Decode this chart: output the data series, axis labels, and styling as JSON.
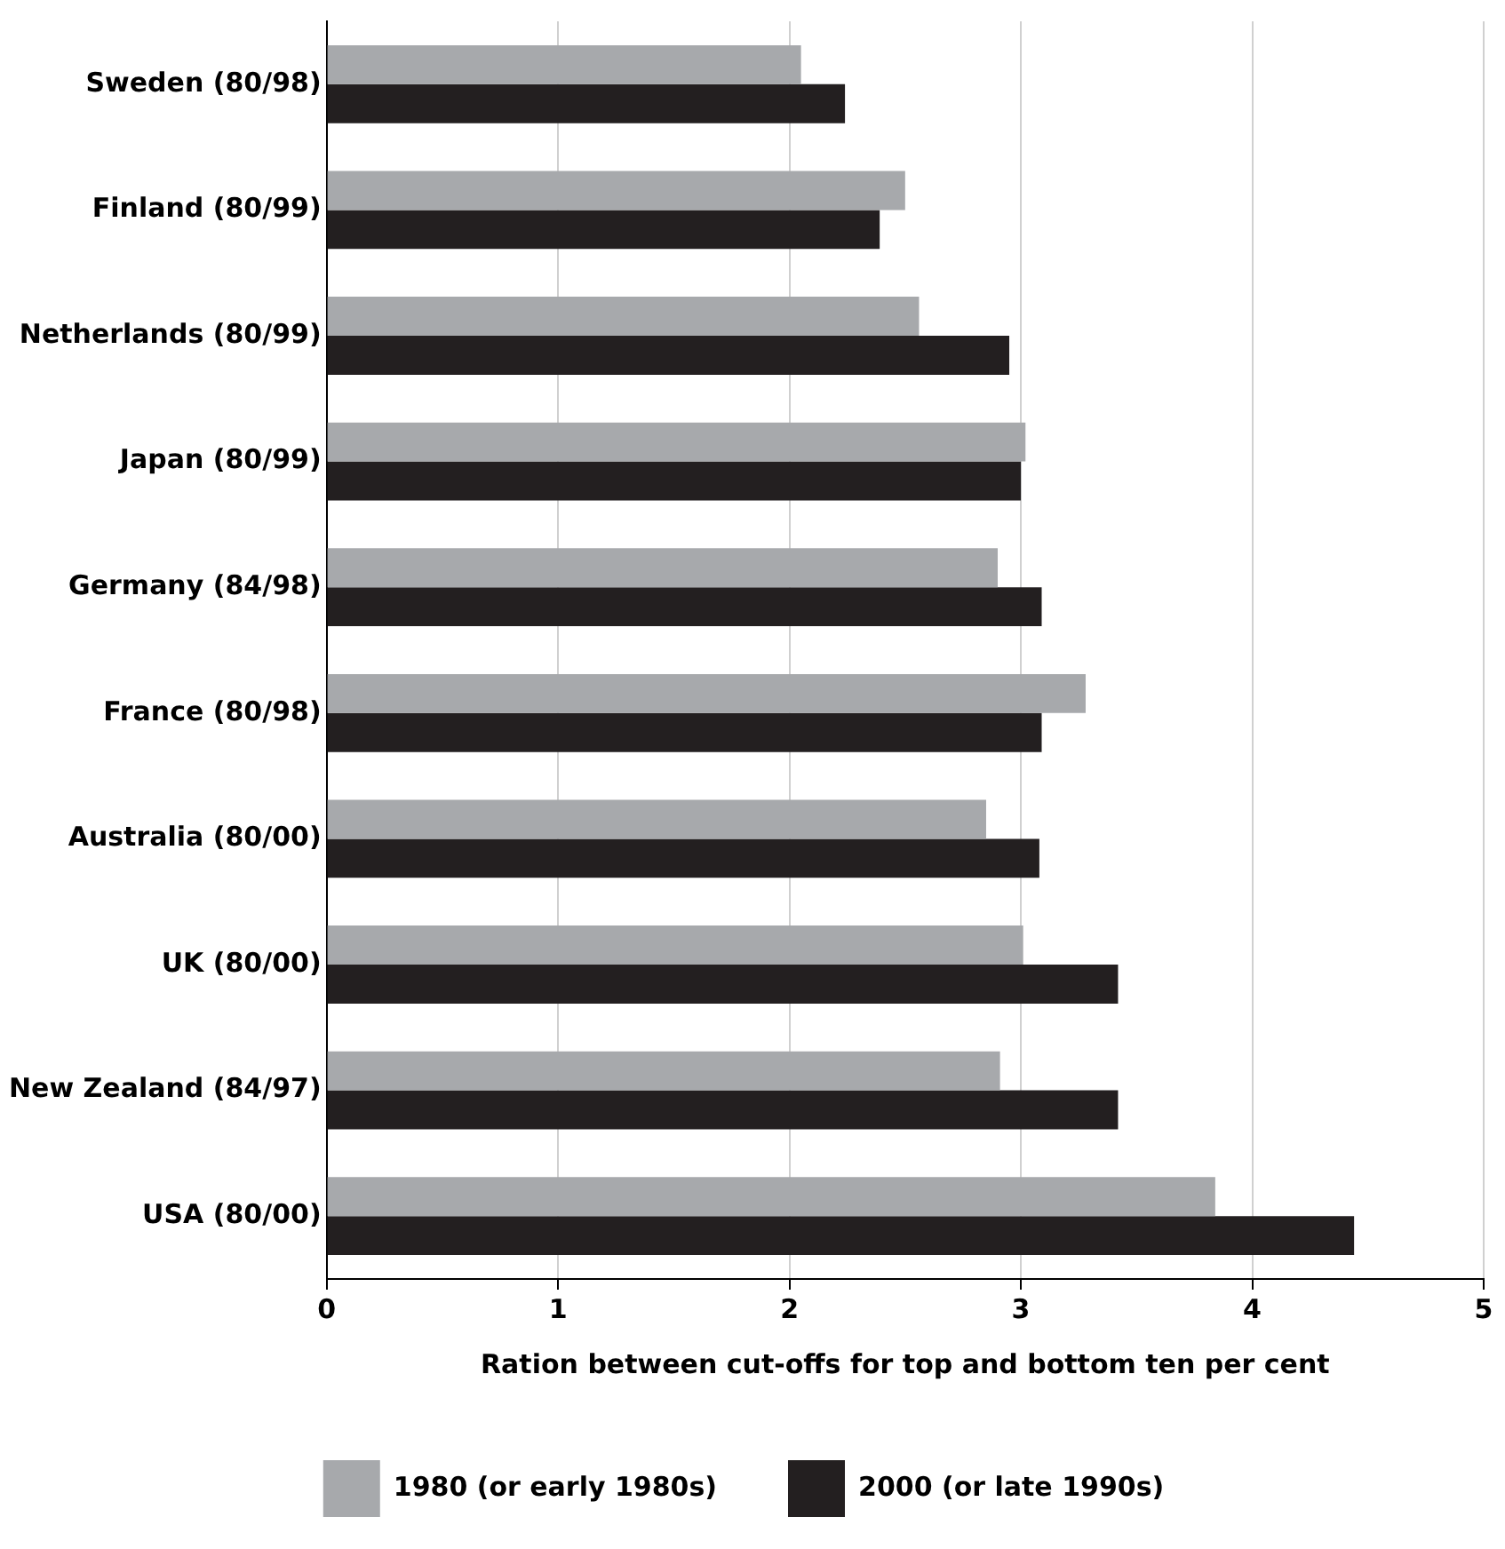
{
  "chart_data": {
    "type": "bar",
    "orientation": "horizontal",
    "xlabel": "Ration between cut-offs for top and bottom ten per cent",
    "categories": [
      "Sweden (80/98)",
      "Finland (80/99)",
      "Netherlands (80/99)",
      "Japan (80/99)",
      "Germany (84/98)",
      "France (80/98)",
      "Australia (80/00)",
      "UK (80/00)",
      "New Zealand (84/97)",
      "USA (80/00)"
    ],
    "series": [
      {
        "name": "1980 (or early 1980s)",
        "color": "#a7a9ac",
        "values": [
          2.05,
          2.5,
          2.56,
          3.02,
          2.9,
          3.28,
          2.85,
          3.01,
          2.91,
          3.84
        ]
      },
      {
        "name": "2000 (or late 1990s)",
        "color": "#231f20",
        "values": [
          2.24,
          2.39,
          2.95,
          3.0,
          3.09,
          3.09,
          3.08,
          3.42,
          3.42,
          4.44
        ]
      }
    ],
    "xlim": [
      0,
      5
    ],
    "xticks": [
      0,
      1,
      2,
      3,
      4,
      5
    ],
    "grid": "x",
    "legend": "bottom"
  }
}
